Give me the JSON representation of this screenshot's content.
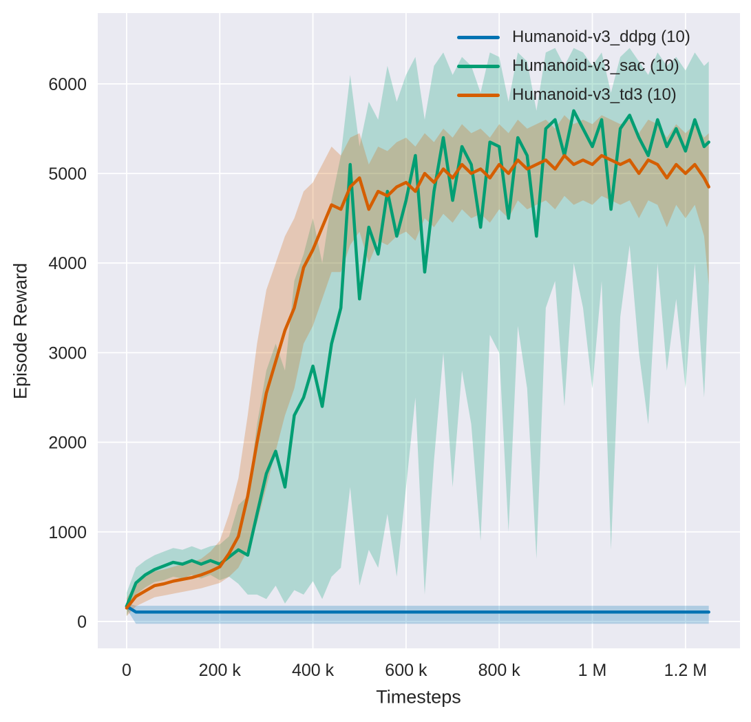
{
  "chart_data": {
    "type": "line",
    "title": "",
    "xlabel": "Timesteps",
    "ylabel": "Episode Reward",
    "grid": true,
    "legend_position": "upper right",
    "colors": {
      "axes_background": "#eaeaf2",
      "gridline": "#ffffff",
      "text": "#262626"
    },
    "band_opacity": 0.25,
    "xlim": [
      -62000,
      1317000
    ],
    "ylim": [
      -300,
      6790
    ],
    "x_ticks": [
      {
        "value": 0,
        "label": "0"
      },
      {
        "value": 200000,
        "label": "200 k"
      },
      {
        "value": 400000,
        "label": "400 k"
      },
      {
        "value": 600000,
        "label": "600 k"
      },
      {
        "value": 800000,
        "label": "800 k"
      },
      {
        "value": 1000000,
        "label": "1 M"
      },
      {
        "value": 1200000,
        "label": "1.2 M"
      }
    ],
    "y_ticks": [
      {
        "value": 0,
        "label": "0"
      },
      {
        "value": 1000,
        "label": "1000"
      },
      {
        "value": 2000,
        "label": "2000"
      },
      {
        "value": 3000,
        "label": "3000"
      },
      {
        "value": 4000,
        "label": "4000"
      },
      {
        "value": 5000,
        "label": "5000"
      },
      {
        "value": 6000,
        "label": "6000"
      }
    ],
    "x": [
      0,
      20000,
      40000,
      60000,
      80000,
      100000,
      120000,
      140000,
      160000,
      180000,
      200000,
      220000,
      240000,
      260000,
      280000,
      300000,
      320000,
      340000,
      360000,
      380000,
      400000,
      420000,
      440000,
      460000,
      480000,
      500000,
      520000,
      540000,
      560000,
      580000,
      600000,
      620000,
      640000,
      660000,
      680000,
      700000,
      720000,
      740000,
      760000,
      780000,
      800000,
      820000,
      840000,
      860000,
      880000,
      900000,
      920000,
      940000,
      960000,
      980000,
      1000000,
      1020000,
      1040000,
      1060000,
      1080000,
      1100000,
      1120000,
      1140000,
      1160000,
      1180000,
      1200000,
      1220000,
      1240000,
      1250000
    ],
    "series": [
      {
        "name": "ddpg",
        "label": "Humanoid-v3_ddpg (10)",
        "color": "#0173b2",
        "mean": [
          170,
          105,
          105,
          105,
          105,
          105,
          105,
          105,
          105,
          105,
          105,
          105,
          105,
          105,
          105,
          105,
          105,
          105,
          105,
          105,
          105,
          105,
          105,
          105,
          105,
          105,
          105,
          105,
          105,
          105,
          105,
          105,
          105,
          105,
          105,
          105,
          105,
          105,
          105,
          105,
          105,
          105,
          105,
          105,
          105,
          105,
          105,
          105,
          105,
          105,
          105,
          105,
          105,
          105,
          105,
          105,
          105,
          105,
          105,
          105,
          105,
          105,
          105,
          105
        ],
        "lo": [
          140,
          -25,
          -25,
          -25,
          -25,
          -25,
          -25,
          -25,
          -25,
          -25,
          -25,
          -25,
          -25,
          -25,
          -25,
          -25,
          -25,
          -25,
          -25,
          -25,
          -25,
          -25,
          -25,
          -25,
          -25,
          -25,
          -25,
          -25,
          -25,
          -25,
          -25,
          -25,
          -25,
          -25,
          -25,
          -25,
          -25,
          -25,
          -25,
          -25,
          -25,
          -25,
          -25,
          -25,
          -25,
          -25,
          -25,
          -25,
          -25,
          -25,
          -25,
          -25,
          -25,
          -25,
          -25,
          -25,
          -25,
          -25,
          -25,
          -25,
          -25,
          -25,
          -25,
          -25
        ],
        "hi": [
          205,
          175,
          175,
          175,
          175,
          175,
          175,
          175,
          175,
          175,
          175,
          175,
          175,
          175,
          175,
          175,
          175,
          175,
          175,
          175,
          175,
          175,
          175,
          175,
          175,
          175,
          175,
          175,
          175,
          175,
          175,
          175,
          175,
          175,
          175,
          175,
          175,
          175,
          175,
          175,
          175,
          175,
          175,
          175,
          175,
          175,
          175,
          175,
          175,
          175,
          175,
          175,
          175,
          175,
          175,
          175,
          175,
          175,
          175,
          175,
          175,
          175,
          175,
          175
        ]
      },
      {
        "name": "sac",
        "label": "Humanoid-v3_sac (10)",
        "color": "#029e73",
        "mean": [
          170,
          430,
          520,
          580,
          620,
          660,
          640,
          680,
          640,
          680,
          640,
          720,
          800,
          740,
          1200,
          1650,
          1900,
          1500,
          2300,
          2500,
          2850,
          2400,
          3100,
          3500,
          5100,
          3600,
          4400,
          4100,
          4800,
          4300,
          4700,
          5200,
          3900,
          4800,
          5400,
          4700,
          5300,
          5100,
          4400,
          5350,
          5300,
          4500,
          5400,
          5200,
          4300,
          5500,
          5600,
          5200,
          5700,
          5500,
          5300,
          5600,
          4600,
          5500,
          5650,
          5400,
          5200,
          5600,
          5300,
          5500,
          5250,
          5600,
          5300,
          5350
        ],
        "lo": [
          60,
          300,
          380,
          440,
          460,
          500,
          480,
          520,
          480,
          520,
          460,
          500,
          420,
          300,
          300,
          250,
          400,
          200,
          350,
          300,
          450,
          250,
          500,
          600,
          1500,
          400,
          800,
          600,
          1200,
          500,
          1500,
          2500,
          300,
          1800,
          3000,
          1500,
          2800,
          2200,
          900,
          3200,
          3000,
          1000,
          3300,
          2600,
          700,
          3500,
          3800,
          2400,
          4000,
          3500,
          2600,
          3800,
          800,
          3400,
          4200,
          3000,
          2200,
          4000,
          2800,
          3600,
          2600,
          4000,
          2500,
          3700
        ],
        "hi": [
          320,
          600,
          680,
          740,
          780,
          820,
          800,
          840,
          800,
          840,
          860,
          950,
          1300,
          1400,
          2200,
          2800,
          3100,
          2800,
          3800,
          4100,
          4500,
          4000,
          4700,
          5200,
          6100,
          5300,
          5800,
          5600,
          6200,
          5800,
          6100,
          6300,
          5600,
          6200,
          6350,
          6100,
          6300,
          6200,
          5900,
          6350,
          6300,
          5800,
          6350,
          6250,
          5700,
          6350,
          6400,
          6200,
          6400,
          6350,
          6200,
          6350,
          5900,
          6300,
          6400,
          6250,
          6100,
          6350,
          6200,
          6300,
          6150,
          6350,
          6200,
          6250
        ]
      },
      {
        "name": "td3",
        "label": "Humanoid-v3_td3 (10)",
        "color": "#d55e00",
        "mean": [
          150,
          280,
          340,
          400,
          420,
          450,
          470,
          490,
          520,
          560,
          610,
          760,
          950,
          1400,
          2000,
          2550,
          2900,
          3250,
          3500,
          3950,
          4150,
          4400,
          4650,
          4600,
          4850,
          4950,
          4600,
          4800,
          4750,
          4850,
          4900,
          4800,
          5000,
          4900,
          5050,
          4950,
          5100,
          5000,
          5050,
          4950,
          5100,
          5000,
          5150,
          5050,
          5100,
          5150,
          5050,
          5200,
          5100,
          5150,
          5100,
          5200,
          5150,
          5100,
          5150,
          5000,
          5150,
          5100,
          4950,
          5100,
          5000,
          5100,
          4950,
          4850
        ],
        "lo": [
          60,
          170,
          220,
          270,
          290,
          310,
          330,
          350,
          370,
          400,
          430,
          500,
          600,
          800,
          1100,
          1500,
          1900,
          2300,
          2600,
          3100,
          3300,
          3600,
          3900,
          3900,
          4200,
          4350,
          4000,
          4250,
          4200,
          4300,
          4350,
          4250,
          4500,
          4400,
          4550,
          4450,
          4600,
          4500,
          4550,
          4450,
          4600,
          4500,
          4700,
          4600,
          4650,
          4700,
          4600,
          4750,
          4650,
          4700,
          4650,
          4750,
          4700,
          4650,
          4700,
          4500,
          4700,
          4650,
          4400,
          4650,
          4500,
          4650,
          4300,
          3750
        ],
        "hi": [
          260,
          420,
          500,
          560,
          580,
          610,
          640,
          660,
          700,
          780,
          900,
          1200,
          1600,
          2300,
          3100,
          3700,
          4000,
          4300,
          4500,
          4800,
          4900,
          5100,
          5300,
          5200,
          5400,
          5450,
          5100,
          5300,
          5250,
          5350,
          5400,
          5300,
          5450,
          5350,
          5500,
          5400,
          5550,
          5450,
          5500,
          5400,
          5550,
          5450,
          5600,
          5500,
          5550,
          5600,
          5500,
          5650,
          5550,
          5600,
          5550,
          5650,
          5600,
          5550,
          5600,
          5450,
          5600,
          5550,
          5400,
          5550,
          5450,
          5550,
          5400,
          5450
        ]
      }
    ]
  }
}
